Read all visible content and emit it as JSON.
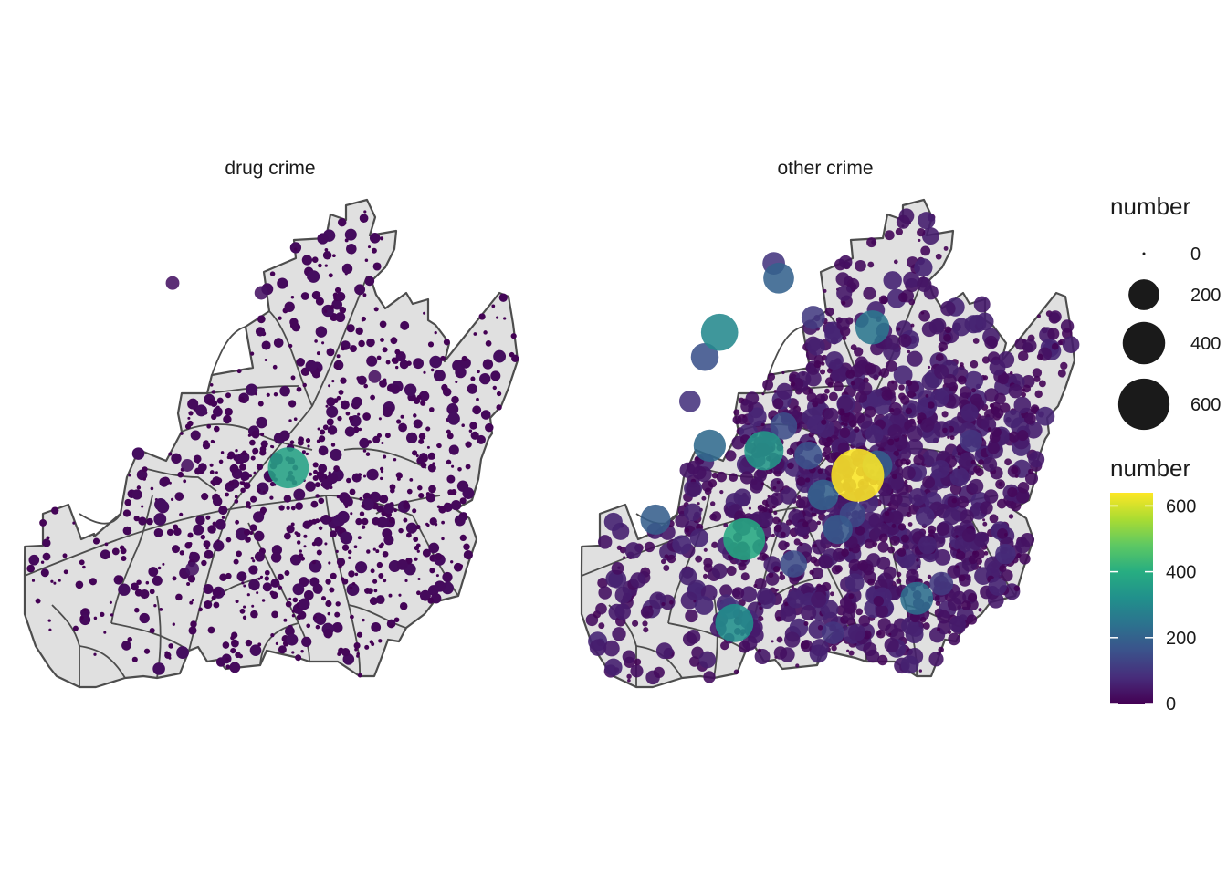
{
  "chart_data": {
    "type": "scatter",
    "facets": [
      {
        "label": "drug crime",
        "hotspots": [
          {
            "lon": 0.535,
            "lat": 0.555,
            "number": 370
          },
          {
            "lon": 0.48,
            "lat": 0.2,
            "number": 30
          },
          {
            "lon": 0.34,
            "lat": 0.76,
            "number": 30
          },
          {
            "lon": 0.33,
            "lat": 0.55,
            "number": 25
          },
          {
            "lon": 0.3,
            "lat": 0.18,
            "number": 30
          },
          {
            "lon": 0.71,
            "lat": 0.37,
            "number": 25
          }
        ],
        "background_count": 900,
        "background_max": 25
      },
      {
        "label": "other crime",
        "hotspots": [
          {
            "lon": 0.56,
            "lat": 0.57,
            "number": 640
          },
          {
            "lon": 0.37,
            "lat": 0.52,
            "number": 340
          },
          {
            "lon": 0.33,
            "lat": 0.7,
            "number": 390
          },
          {
            "lon": 0.31,
            "lat": 0.87,
            "number": 320
          },
          {
            "lon": 0.28,
            "lat": 0.28,
            "number": 300
          },
          {
            "lon": 0.59,
            "lat": 0.27,
            "number": 250
          },
          {
            "lon": 0.26,
            "lat": 0.51,
            "number": 220
          },
          {
            "lon": 0.4,
            "lat": 0.17,
            "number": 200
          },
          {
            "lon": 0.15,
            "lat": 0.66,
            "number": 190
          },
          {
            "lon": 0.68,
            "lat": 0.82,
            "number": 230
          },
          {
            "lon": 0.49,
            "lat": 0.61,
            "number": 200
          },
          {
            "lon": 0.52,
            "lat": 0.68,
            "number": 180
          },
          {
            "lon": 0.6,
            "lat": 0.55,
            "number": 190
          },
          {
            "lon": 0.46,
            "lat": 0.53,
            "number": 160
          },
          {
            "lon": 0.41,
            "lat": 0.47,
            "number": 150
          },
          {
            "lon": 0.25,
            "lat": 0.33,
            "number": 160
          },
          {
            "lon": 0.43,
            "lat": 0.75,
            "number": 150
          },
          {
            "lon": 0.55,
            "lat": 0.65,
            "number": 140
          },
          {
            "lon": 0.73,
            "lat": 0.79,
            "number": 110
          },
          {
            "lon": 0.47,
            "lat": 0.25,
            "number": 110
          },
          {
            "lon": 0.39,
            "lat": 0.14,
            "number": 100
          },
          {
            "lon": 0.51,
            "lat": 0.89,
            "number": 100
          },
          {
            "lon": 0.79,
            "lat": 0.5,
            "number": 100
          },
          {
            "lon": 0.22,
            "lat": 0.42,
            "number": 90
          },
          {
            "lon": 0.86,
            "lat": 0.73,
            "number": 80
          },
          {
            "lon": 0.3,
            "lat": 0.84,
            "number": 90
          }
        ],
        "background_count": 1500,
        "background_max": 70
      }
    ],
    "size_legend": {
      "title": "number",
      "breaks": [
        0,
        200,
        400,
        600
      ],
      "labels": [
        "0",
        "200",
        "400",
        "600"
      ]
    },
    "color_legend": {
      "title": "number",
      "range": [
        0,
        640
      ],
      "breaks": [
        0,
        200,
        400,
        600
      ],
      "labels": [
        "0",
        "200",
        "400",
        "600"
      ],
      "palette": "viridis",
      "stops": [
        "#440154",
        "#472D7B",
        "#3B528B",
        "#2C728E",
        "#21908C",
        "#27AD81",
        "#5DC863",
        "#AADC32",
        "#FDE725"
      ]
    },
    "map_fill": "#e0e0e0",
    "boundary_color": "#4d4d4d",
    "size_range_px": [
      1.5,
      29
    ]
  }
}
